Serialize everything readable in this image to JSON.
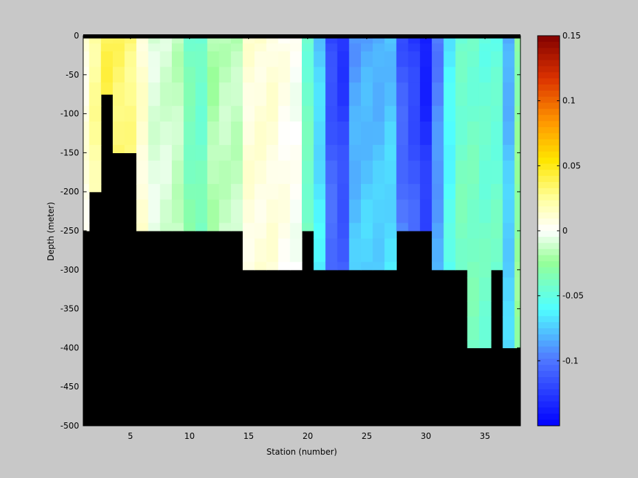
{
  "chart_data": {
    "type": "heatmap",
    "xlabel": "Station (number)",
    "ylabel": "Depth (meter)",
    "xlim": [
      1,
      38
    ],
    "ylim": [
      -500,
      0
    ],
    "x_ticks": [
      5,
      10,
      15,
      20,
      25,
      30,
      35
    ],
    "y_ticks": [
      0,
      -50,
      -100,
      -150,
      -200,
      -250,
      -300,
      -350,
      -400,
      -450,
      -500
    ],
    "depth_rows": [
      0,
      -12.5,
      -25,
      -50,
      -75,
      -100,
      -125,
      -150,
      -175,
      -200,
      -225,
      -250,
      -275,
      -300,
      -325,
      -350,
      -375,
      -400
    ],
    "depth_row_bounds": [
      0,
      -10,
      -20,
      -40,
      -60,
      -90,
      -110,
      -140,
      -160,
      -190,
      -210,
      -240,
      -260,
      -290,
      -310,
      -340,
      -360,
      -390,
      -410
    ],
    "seafloor_depth_by_station": [
      -250,
      -200,
      -75,
      -150,
      -150,
      -250,
      -250,
      -250,
      -250,
      -250,
      -250,
      -250,
      -250,
      -250,
      -300,
      -300,
      -300,
      -300,
      -300,
      -250,
      -300,
      -300,
      -300,
      -300,
      -300,
      -300,
      -300,
      -250,
      -250,
      -250,
      -300,
      -300,
      -300,
      -400,
      -400,
      -300,
      -400,
      -400
    ],
    "station_values": [
      0.008,
      0.025,
      0.04,
      0.035,
      0.03,
      0.012,
      -0.008,
      -0.01,
      -0.015,
      -0.04,
      -0.045,
      -0.02,
      -0.015,
      -0.015,
      0.01,
      0.01,
      0.01,
      0.005,
      0.0,
      -0.045,
      -0.075,
      -0.12,
      -0.13,
      -0.09,
      -0.085,
      -0.085,
      -0.08,
      -0.115,
      -0.125,
      -0.14,
      -0.1,
      -0.065,
      -0.045,
      -0.045,
      -0.05,
      -0.05,
      -0.085,
      -0.03
    ],
    "colorbar": {
      "limits": [
        -0.15,
        0.15
      ],
      "ticks": [
        0.15,
        0.1,
        0.05,
        0,
        -0.05,
        -0.1
      ],
      "tick_labels": [
        "0.15",
        "0.1",
        "0.05",
        "0",
        "-0.05",
        "-0.1"
      ]
    },
    "mask_color": "#000000",
    "background_color": "#c8c8c8"
  }
}
